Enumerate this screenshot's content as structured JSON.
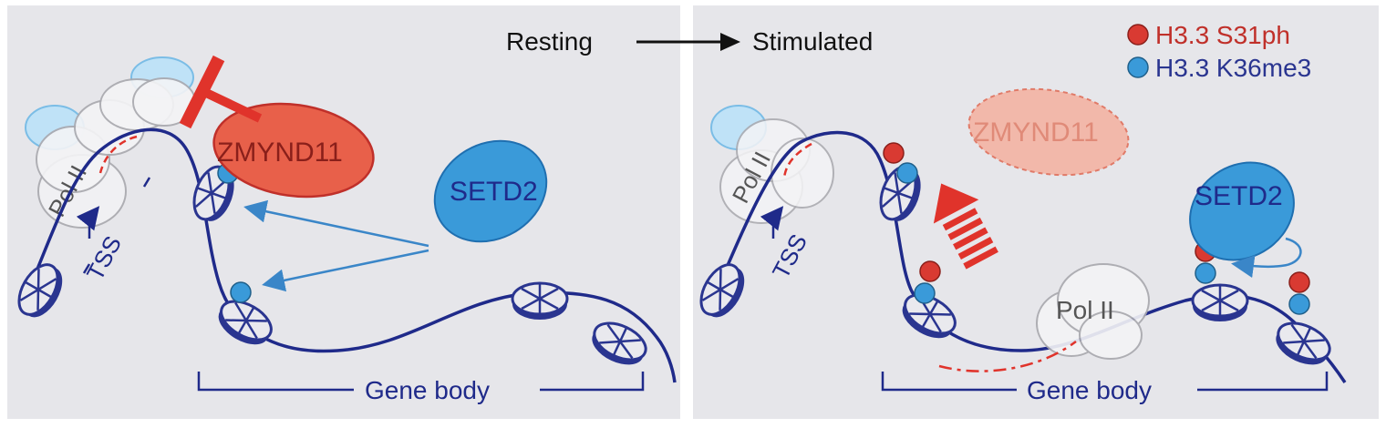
{
  "header": {
    "state_from": "Resting",
    "state_to": "Stimulated"
  },
  "legend": [
    {
      "label": "H3.3 S31ph",
      "color": "#d93a32"
    },
    {
      "label": "H3.3 K36me3",
      "color": "#3a9ad9"
    }
  ],
  "left_panel": {
    "pol2_label": "Pol II",
    "tss_label": "TSS",
    "zmynd11_label": "ZMYND11",
    "setd2_label": "SETD2",
    "gene_body_label": "Gene body"
  },
  "right_panel": {
    "pol2_tss_label": "Pol II",
    "tss_label": "TSS",
    "zmynd11_label": "ZMYND11",
    "setd2_label": "SETD2",
    "pol2_body_label": "Pol II",
    "gene_body_label": "Gene body"
  },
  "colors": {
    "panel_bg": "#e6e6ea",
    "dna": "#1f2a8a",
    "zmynd11": "#e8604a",
    "setd2": "#3a9ad9",
    "inhibit": "#e0332b",
    "arrow": "#3a86c8"
  }
}
